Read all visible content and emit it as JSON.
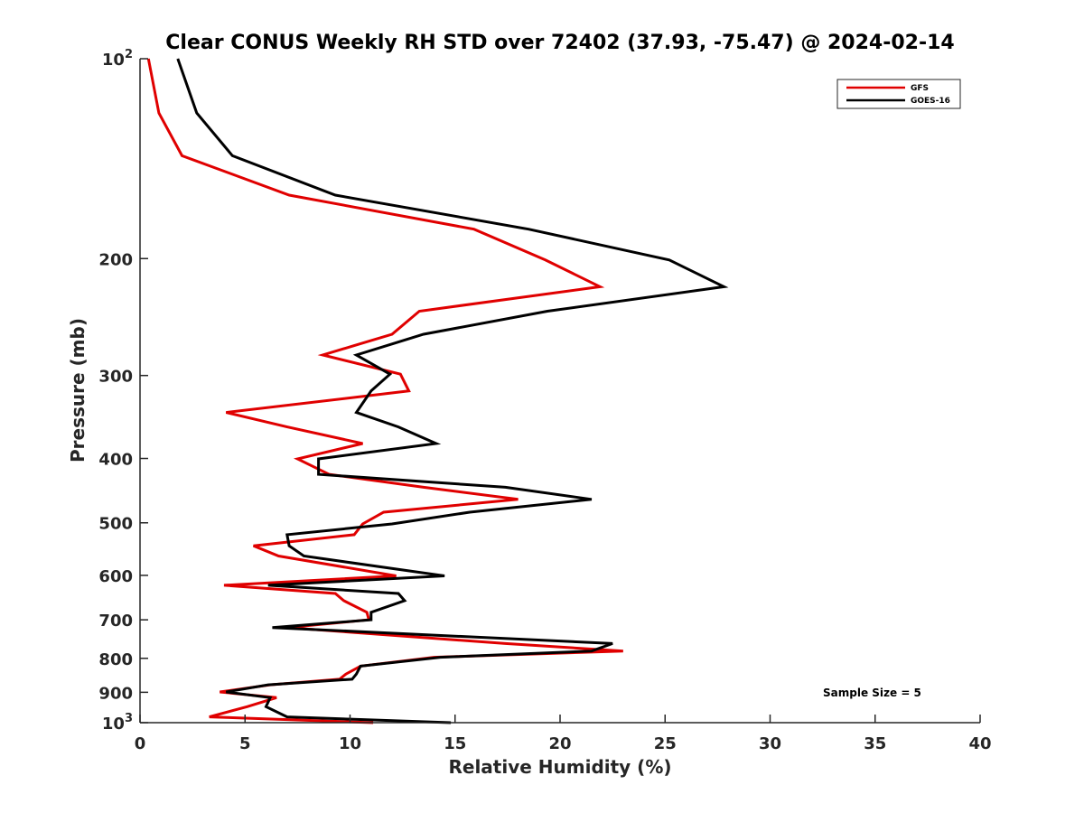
{
  "chart_data": {
    "type": "line",
    "title": "Clear CONUS Weekly RH STD over 72402 (37.93, -75.47) @ 2024-02-14",
    "xlabel": "Relative Humidity (%)",
    "ylabel": "Pressure (mb)",
    "xlim": [
      0,
      40
    ],
    "ylim": [
      100,
      1000
    ],
    "yscale": "log",
    "yreversed": true,
    "grid": false,
    "x_ticks": [
      0,
      5,
      10,
      15,
      20,
      25,
      30,
      35,
      40
    ],
    "x_tick_labels": [
      "0",
      "5",
      "10",
      "15",
      "20",
      "25",
      "30",
      "35",
      "40"
    ],
    "y_ticks": [
      100,
      200,
      300,
      400,
      500,
      600,
      700,
      800,
      900,
      1000
    ],
    "y_tick_labels": [
      {
        "base": "10",
        "exp": "2"
      },
      {
        "base": "200"
      },
      {
        "base": "300"
      },
      {
        "base": "400"
      },
      {
        "base": "500"
      },
      {
        "base": "600"
      },
      {
        "base": "700"
      },
      {
        "base": "800"
      },
      {
        "base": "900"
      },
      {
        "base": "10",
        "exp": "3"
      }
    ],
    "legend": {
      "placement": "top-right"
    },
    "annotation": "Sample Size = 5",
    "series": [
      {
        "name": "GFS",
        "color": "#e00000",
        "points": [
          [
            0.4,
            100
          ],
          [
            0.9,
            120.7
          ],
          [
            2.0,
            140
          ],
          [
            7.1,
            160.5
          ],
          [
            15.9,
            180.6
          ],
          [
            19.3,
            201
          ],
          [
            21.9,
            220.5
          ],
          [
            13.3,
            240
          ],
          [
            12.0,
            260
          ],
          [
            8.7,
            279.4
          ],
          [
            12.4,
            298.6
          ],
          [
            12.8,
            316.5
          ],
          [
            4.1,
            341
          ],
          [
            7.0,
            358.6
          ],
          [
            10.6,
            379.8
          ],
          [
            7.5,
            400.6
          ],
          [
            9.0,
            422.6
          ],
          [
            13.5,
            442
          ],
          [
            18.0,
            461
          ],
          [
            11.6,
            482
          ],
          [
            10.6,
            502
          ],
          [
            10.2,
            521
          ],
          [
            5.4,
            541.5
          ],
          [
            6.6,
            561
          ],
          [
            12.2,
            601
          ],
          [
            4.0,
            621
          ],
          [
            9.3,
            639
          ],
          [
            9.7,
            655
          ],
          [
            10.8,
            682
          ],
          [
            10.9,
            700
          ],
          [
            7.0,
            719
          ],
          [
            17.4,
            760
          ],
          [
            23.0,
            780
          ],
          [
            14.0,
            797
          ],
          [
            10.5,
            822
          ],
          [
            9.8,
            845
          ],
          [
            9.5,
            860
          ],
          [
            6.2,
            877
          ],
          [
            3.8,
            899
          ],
          [
            6.5,
            917
          ],
          [
            5.1,
            946
          ],
          [
            3.3,
            980
          ],
          [
            11.1,
            1000
          ]
        ]
      },
      {
        "name": "GOES-16",
        "color": "#000000",
        "points": [
          [
            1.8,
            100
          ],
          [
            2.7,
            120.7
          ],
          [
            4.4,
            140
          ],
          [
            9.3,
            160.5
          ],
          [
            18.5,
            180.6
          ],
          [
            25.2,
            201
          ],
          [
            27.8,
            220.5
          ],
          [
            19.4,
            240
          ],
          [
            13.5,
            260
          ],
          [
            10.3,
            279.4
          ],
          [
            11.9,
            298.6
          ],
          [
            11.0,
            316.5
          ],
          [
            10.3,
            341
          ],
          [
            12.3,
            358.6
          ],
          [
            14.1,
            379.8
          ],
          [
            8.5,
            400.6
          ],
          [
            8.5,
            422.6
          ],
          [
            17.4,
            442
          ],
          [
            21.5,
            461
          ],
          [
            15.7,
            482
          ],
          [
            12.0,
            502
          ],
          [
            7.0,
            521
          ],
          [
            7.1,
            541.5
          ],
          [
            7.8,
            561
          ],
          [
            14.5,
            601
          ],
          [
            6.1,
            621
          ],
          [
            12.3,
            639
          ],
          [
            12.6,
            655
          ],
          [
            11.0,
            682
          ],
          [
            11.0,
            700
          ],
          [
            6.3,
            719
          ],
          [
            22.5,
            760
          ],
          [
            21.5,
            780
          ],
          [
            14.3,
            797
          ],
          [
            10.5,
            822
          ],
          [
            10.3,
            845
          ],
          [
            10.1,
            860
          ],
          [
            6.1,
            877
          ],
          [
            4.1,
            899
          ],
          [
            6.2,
            917
          ],
          [
            6.0,
            946
          ],
          [
            7.0,
            980
          ],
          [
            14.8,
            1000
          ]
        ]
      }
    ]
  }
}
